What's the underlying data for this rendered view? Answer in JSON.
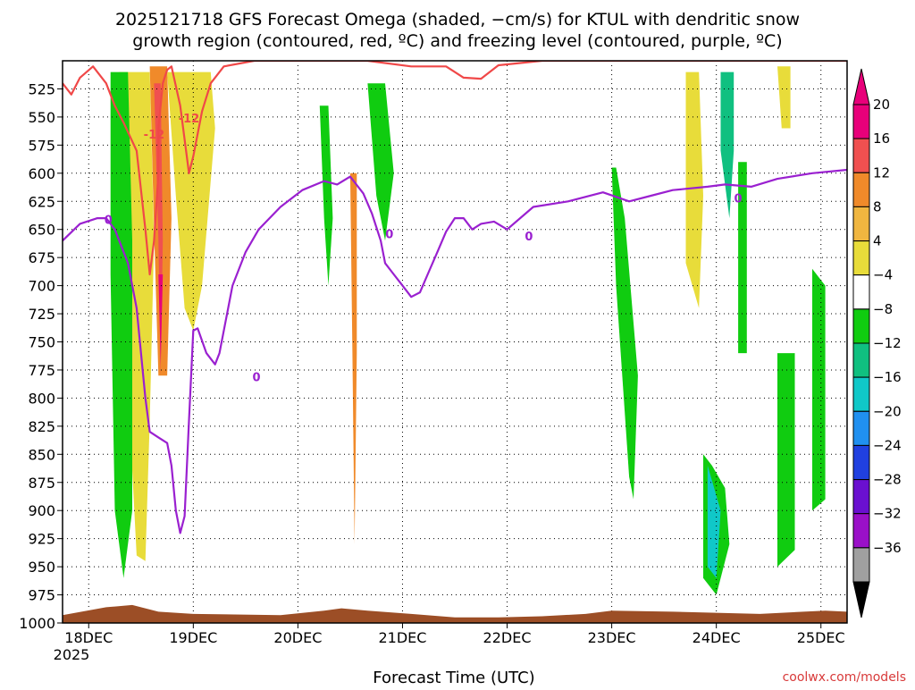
{
  "title_line1": "2025121718 GFS Forecast Omega (shaded, −cm/s) for KTUL with dendritic snow",
  "title_line2": "growth region (contoured, red, ºC) and freezing level (contoured, purple, ºC)",
  "xlabel": "Forecast Time (UTC)",
  "watermark": "coolwx.com/models",
  "year_label": "2025",
  "chart_data": {
    "type": "heatmap",
    "title": "2025121718 GFS Forecast Omega (shaded, −cm/s) for KTUL with dendritic snow growth region (contoured, red, ºC) and freezing level (contoured, purple, ºC)",
    "xlabel": "Forecast Time (UTC)",
    "ylabel": "",
    "x_unit": "hours since 2025-12-17 18Z",
    "xlim": [
      0,
      180
    ],
    "ylim": [
      1000,
      500
    ],
    "x_ticks": [
      {
        "label": "18DEC",
        "x": 6
      },
      {
        "label": "19DEC",
        "x": 30
      },
      {
        "label": "20DEC",
        "x": 54
      },
      {
        "label": "21DEC",
        "x": 78
      },
      {
        "label": "22DEC",
        "x": 102
      },
      {
        "label": "23DEC",
        "x": 126
      },
      {
        "label": "24DEC",
        "x": 150
      },
      {
        "label": "25DEC",
        "x": 174
      }
    ],
    "y_ticks": [
      525,
      550,
      575,
      600,
      625,
      650,
      675,
      700,
      725,
      750,
      775,
      800,
      825,
      850,
      875,
      900,
      925,
      950,
      975,
      1000
    ],
    "grid": true,
    "colorbar": {
      "labels": [
        "20",
        "16",
        "12",
        "8",
        "4",
        "−4",
        "−8",
        "−12",
        "−16",
        "−20",
        "−24",
        "−28",
        "−32",
        "−36"
      ],
      "colors": [
        "#e8007a",
        "#f05050",
        "#f08a2a",
        "#f0b640",
        "#e8dc3a",
        "#ffffff",
        "#10cc10",
        "#10c080",
        "#10c8c8",
        "#2090f0",
        "#2040e0",
        "#6a10d0",
        "#9a10c8",
        "#a0a0a0"
      ],
      "over_color": "#e8007a",
      "under_color": "#000000"
    },
    "omega_regions": [
      {
        "name": "rise-18dec",
        "value": 10,
        "color": "#e8dc3a",
        "pts": [
          [
            13,
            510
          ],
          [
            14,
            640
          ],
          [
            15,
            790
          ],
          [
            17,
            940
          ],
          [
            19,
            945
          ],
          [
            20,
            820
          ],
          [
            21,
            660
          ],
          [
            20,
            510
          ]
        ]
      },
      {
        "name": "rise-19dec-core",
        "value": 12,
        "color": "#f08a2a",
        "pts": [
          [
            20,
            505
          ],
          [
            21,
            650
          ],
          [
            22,
            780
          ],
          [
            24,
            780
          ],
          [
            25,
            640
          ],
          [
            24,
            505
          ]
        ]
      },
      {
        "name": "rise-19dec-max",
        "value": 18,
        "color": "#f05050",
        "pts": [
          [
            21,
            520
          ],
          [
            22,
            660
          ],
          [
            22.5,
            780
          ],
          [
            23,
            660
          ],
          [
            22.5,
            520
          ]
        ]
      },
      {
        "name": "rise-19dec-peak",
        "value": 22,
        "color": "#e8007a",
        "pts": [
          [
            22,
            690
          ],
          [
            22.5,
            770
          ],
          [
            23,
            690
          ]
        ]
      },
      {
        "name": "rise-19-20dec",
        "value": 6,
        "color": "#e8dc3a",
        "pts": [
          [
            24,
            510
          ],
          [
            26,
            620
          ],
          [
            28,
            720
          ],
          [
            30,
            740
          ],
          [
            32,
            700
          ],
          [
            35,
            560
          ],
          [
            34,
            510
          ]
        ]
      },
      {
        "name": "rise-20dec-band",
        "value": 12,
        "color": "#f08a2a",
        "pts": [
          [
            66,
            600
          ],
          [
            66.5,
            760
          ],
          [
            67,
            930
          ],
          [
            67.5,
            760
          ],
          [
            67.5,
            600
          ]
        ]
      },
      {
        "name": "rise-25dec-upper",
        "value": 6,
        "color": "#e8dc3a",
        "pts": [
          [
            164,
            505
          ],
          [
            165,
            560
          ],
          [
            167,
            560
          ],
          [
            167,
            505
          ]
        ]
      },
      {
        "name": "rise-24dec-upper",
        "value": 6,
        "color": "#e8dc3a",
        "pts": [
          [
            143,
            510
          ],
          [
            143,
            680
          ],
          [
            146,
            720
          ],
          [
            147,
            620
          ],
          [
            146,
            510
          ]
        ]
      },
      {
        "name": "sink-18dec",
        "value": -14,
        "color": "#10c8c8",
        "pts": [
          [
            12,
            600
          ],
          [
            13,
            760
          ],
          [
            15,
            870
          ],
          [
            16,
            820
          ],
          [
            15,
            660
          ],
          [
            13,
            600
          ]
        ]
      },
      {
        "name": "sink-18dec-green",
        "value": -6,
        "color": "#10cc10",
        "pts": [
          [
            11,
            510
          ],
          [
            11,
            690
          ],
          [
            12,
            900
          ],
          [
            14,
            960
          ],
          [
            16,
            900
          ],
          [
            16,
            660
          ],
          [
            15,
            510
          ]
        ]
      },
      {
        "name": "sink-20dec",
        "value": -6,
        "color": "#10cc10",
        "pts": [
          [
            59,
            540
          ],
          [
            60,
            640
          ],
          [
            61,
            700
          ],
          [
            62,
            640
          ],
          [
            61,
            540
          ]
        ]
      },
      {
        "name": "sink-21dec",
        "value": -6,
        "color": "#10cc10",
        "pts": [
          [
            70,
            520
          ],
          [
            72,
            620
          ],
          [
            74,
            660
          ],
          [
            76,
            600
          ],
          [
            74,
            520
          ]
        ]
      },
      {
        "name": "sink-23dec",
        "value": -6,
        "color": "#10cc10",
        "pts": [
          [
            126,
            595
          ],
          [
            127,
            700
          ],
          [
            130,
            870
          ],
          [
            131,
            890
          ],
          [
            132,
            780
          ],
          [
            129,
            640
          ],
          [
            127,
            595
          ]
        ]
      },
      {
        "name": "sink-24dec",
        "value": -6,
        "color": "#10cc10",
        "pts": [
          [
            147,
            850
          ],
          [
            147,
            960
          ],
          [
            150,
            975
          ],
          [
            153,
            930
          ],
          [
            152,
            880
          ],
          [
            149,
            860
          ]
        ]
      },
      {
        "name": "sink-24dec-cyan",
        "value": -14,
        "color": "#10c8c8",
        "pts": [
          [
            148,
            860
          ],
          [
            148,
            950
          ],
          [
            150,
            960
          ],
          [
            151,
            900
          ]
        ]
      },
      {
        "name": "sink-24dec-upper",
        "value": -10,
        "color": "#10c080",
        "pts": [
          [
            151,
            510
          ],
          [
            151,
            580
          ],
          [
            153,
            640
          ],
          [
            154,
            580
          ],
          [
            154,
            510
          ]
        ]
      },
      {
        "name": "sink-24dec-mid",
        "value": -6,
        "color": "#10cc10",
        "pts": [
          [
            155,
            590
          ],
          [
            155,
            760
          ],
          [
            157,
            760
          ],
          [
            157,
            590
          ]
        ]
      },
      {
        "name": "sink-25dec",
        "value": -6,
        "color": "#10cc10",
        "pts": [
          [
            164,
            760
          ],
          [
            164,
            950
          ],
          [
            168,
            935
          ],
          [
            168,
            760
          ]
        ]
      },
      {
        "name": "sink-25dec-b",
        "value": -6,
        "color": "#10cc10",
        "pts": [
          [
            172,
            685
          ],
          [
            172,
            900
          ],
          [
            175,
            890
          ],
          [
            175,
            700
          ]
        ]
      }
    ],
    "series": [
      {
        "name": "-12",
        "color": "#f04848",
        "points": [
          [
            0,
            520
          ],
          [
            2,
            530
          ],
          [
            4,
            515
          ],
          [
            7,
            505
          ],
          [
            10,
            520
          ],
          [
            12,
            540
          ],
          [
            14,
            555
          ],
          [
            17,
            580
          ],
          [
            19,
            650
          ],
          [
            20,
            690
          ],
          [
            21,
            660
          ],
          [
            22,
            600
          ],
          [
            22,
            560
          ],
          [
            23,
            520
          ],
          [
            24,
            508
          ],
          [
            25,
            505
          ],
          [
            27,
            540
          ],
          [
            29,
            600
          ],
          [
            30,
            585
          ],
          [
            32,
            545
          ],
          [
            34,
            520
          ],
          [
            37,
            505
          ],
          [
            44,
            500
          ],
          [
            55,
            500
          ],
          [
            70,
            500
          ],
          [
            80,
            505
          ],
          [
            88,
            505
          ],
          [
            92,
            515
          ],
          [
            96,
            516
          ],
          [
            100,
            504
          ],
          [
            110,
            500
          ],
          [
            130,
            500
          ],
          [
            150,
            500
          ],
          [
            180,
            500
          ]
        ]
      },
      {
        "name": "0",
        "color": "#9a20d0",
        "points": [
          [
            0,
            660
          ],
          [
            4,
            645
          ],
          [
            8,
            640
          ],
          [
            10,
            640
          ],
          [
            12,
            650
          ],
          [
            15,
            680
          ],
          [
            17,
            720
          ],
          [
            19,
            800
          ],
          [
            20,
            830
          ],
          [
            22,
            835
          ],
          [
            24,
            840
          ],
          [
            25,
            860
          ],
          [
            26,
            900
          ],
          [
            27,
            920
          ],
          [
            28,
            905
          ],
          [
            29,
            820
          ],
          [
            30,
            740
          ],
          [
            31,
            738
          ],
          [
            33,
            760
          ],
          [
            35,
            770
          ],
          [
            36,
            760
          ],
          [
            39,
            700
          ],
          [
            42,
            670
          ],
          [
            45,
            650
          ],
          [
            50,
            630
          ],
          [
            55,
            615
          ],
          [
            60,
            607
          ],
          [
            63,
            610
          ],
          [
            66,
            603
          ],
          [
            69,
            618
          ],
          [
            71,
            636
          ],
          [
            73,
            660
          ],
          [
            74,
            680
          ],
          [
            76,
            690
          ],
          [
            78,
            700
          ],
          [
            80,
            710
          ],
          [
            82,
            706
          ],
          [
            84,
            688
          ],
          [
            86,
            670
          ],
          [
            88,
            652
          ],
          [
            90,
            640
          ],
          [
            92,
            640
          ],
          [
            94,
            650
          ],
          [
            96,
            645
          ],
          [
            99,
            643
          ],
          [
            102,
            650
          ],
          [
            108,
            630
          ],
          [
            116,
            625
          ],
          [
            124,
            617
          ],
          [
            130,
            625
          ],
          [
            135,
            620
          ],
          [
            140,
            615
          ],
          [
            148,
            612
          ],
          [
            152,
            610
          ],
          [
            158,
            612
          ],
          [
            164,
            605
          ],
          [
            172,
            600
          ],
          [
            180,
            597
          ]
        ]
      }
    ],
    "contour_labels": [
      {
        "text": "-12",
        "x": 21,
        "y": 565,
        "color": "#f04848"
      },
      {
        "text": "-12",
        "x": 29,
        "y": 551,
        "color": "#f04848"
      },
      {
        "text": "0",
        "x": 10.5,
        "y": 641,
        "color": "#9a20d0"
      },
      {
        "text": "0",
        "x": 44.5,
        "y": 781,
        "color": "#9a20d0"
      },
      {
        "text": "0",
        "x": 75,
        "y": 654,
        "color": "#9a20d0"
      },
      {
        "text": "0",
        "x": 107,
        "y": 656,
        "color": "#9a20d0"
      },
      {
        "text": "0",
        "x": 155,
        "y": 622,
        "color": "#9a20d0"
      }
    ],
    "terrain": {
      "color": "#9c4e26",
      "points": [
        [
          0,
          993
        ],
        [
          10,
          986
        ],
        [
          16,
          984
        ],
        [
          22,
          990
        ],
        [
          30,
          992
        ],
        [
          50,
          993
        ],
        [
          60,
          989
        ],
        [
          64,
          987
        ],
        [
          70,
          989
        ],
        [
          80,
          992
        ],
        [
          90,
          995
        ],
        [
          100,
          995
        ],
        [
          110,
          994
        ],
        [
          120,
          992
        ],
        [
          126,
          989
        ],
        [
          140,
          990
        ],
        [
          160,
          992
        ],
        [
          170,
          990
        ],
        [
          175,
          989
        ],
        [
          180,
          990
        ]
      ]
    }
  }
}
